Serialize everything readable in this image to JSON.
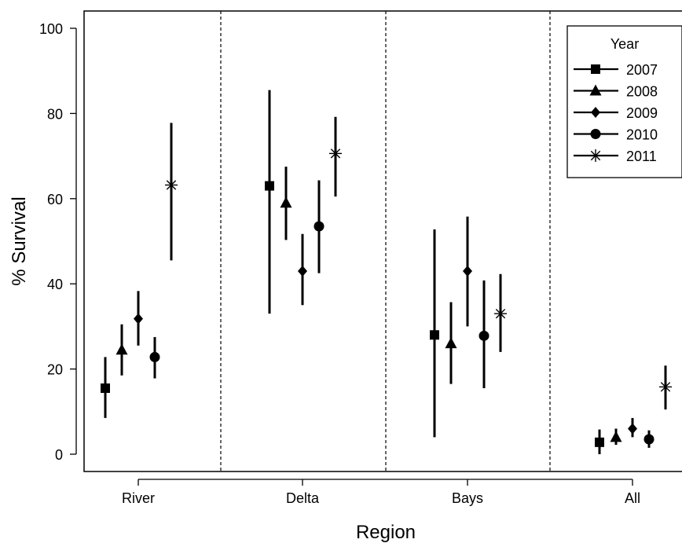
{
  "chart_data": {
    "type": "scatter",
    "subtype": "point-with-error-bars",
    "xlabel": "Region",
    "ylabel": "% Survival",
    "ylim": [
      -4,
      104
    ],
    "yticks": [
      0,
      20,
      40,
      60,
      80,
      100
    ],
    "categories": [
      "River",
      "Delta",
      "Bays",
      "All"
    ],
    "grid": false,
    "category_separators": "dashed vertical lines",
    "legend": {
      "title": "Year",
      "placement": "top-right"
    },
    "series": [
      {
        "name": "2007",
        "marker": "square",
        "values": [
          15.5,
          63.0,
          28.0,
          2.8
        ],
        "lower": [
          8.5,
          33.0,
          4.0,
          0.0
        ],
        "upper": [
          22.8,
          85.5,
          52.8,
          5.8
        ]
      },
      {
        "name": "2008",
        "marker": "triangle",
        "values": [
          24.5,
          59.0,
          26.0,
          4.0
        ],
        "lower": [
          18.5,
          50.3,
          16.5,
          2.2
        ],
        "upper": [
          30.5,
          67.5,
          35.7,
          6.0
        ]
      },
      {
        "name": "2009",
        "marker": "diamond",
        "values": [
          31.8,
          43.0,
          43.0,
          6.0
        ],
        "lower": [
          25.5,
          35.0,
          30.0,
          4.0
        ],
        "upper": [
          38.3,
          51.7,
          55.8,
          8.5
        ]
      },
      {
        "name": "2010",
        "marker": "circle",
        "values": [
          22.8,
          53.5,
          27.8,
          3.5
        ],
        "lower": [
          17.8,
          42.5,
          15.5,
          1.5
        ],
        "upper": [
          27.5,
          64.3,
          40.8,
          5.6
        ]
      },
      {
        "name": "2011",
        "marker": "asterisk",
        "values": [
          63.2,
          70.6,
          33.0,
          15.8
        ],
        "lower": [
          45.5,
          60.5,
          24.0,
          10.5
        ],
        "upper": [
          77.8,
          79.2,
          42.3,
          20.8
        ]
      }
    ]
  }
}
